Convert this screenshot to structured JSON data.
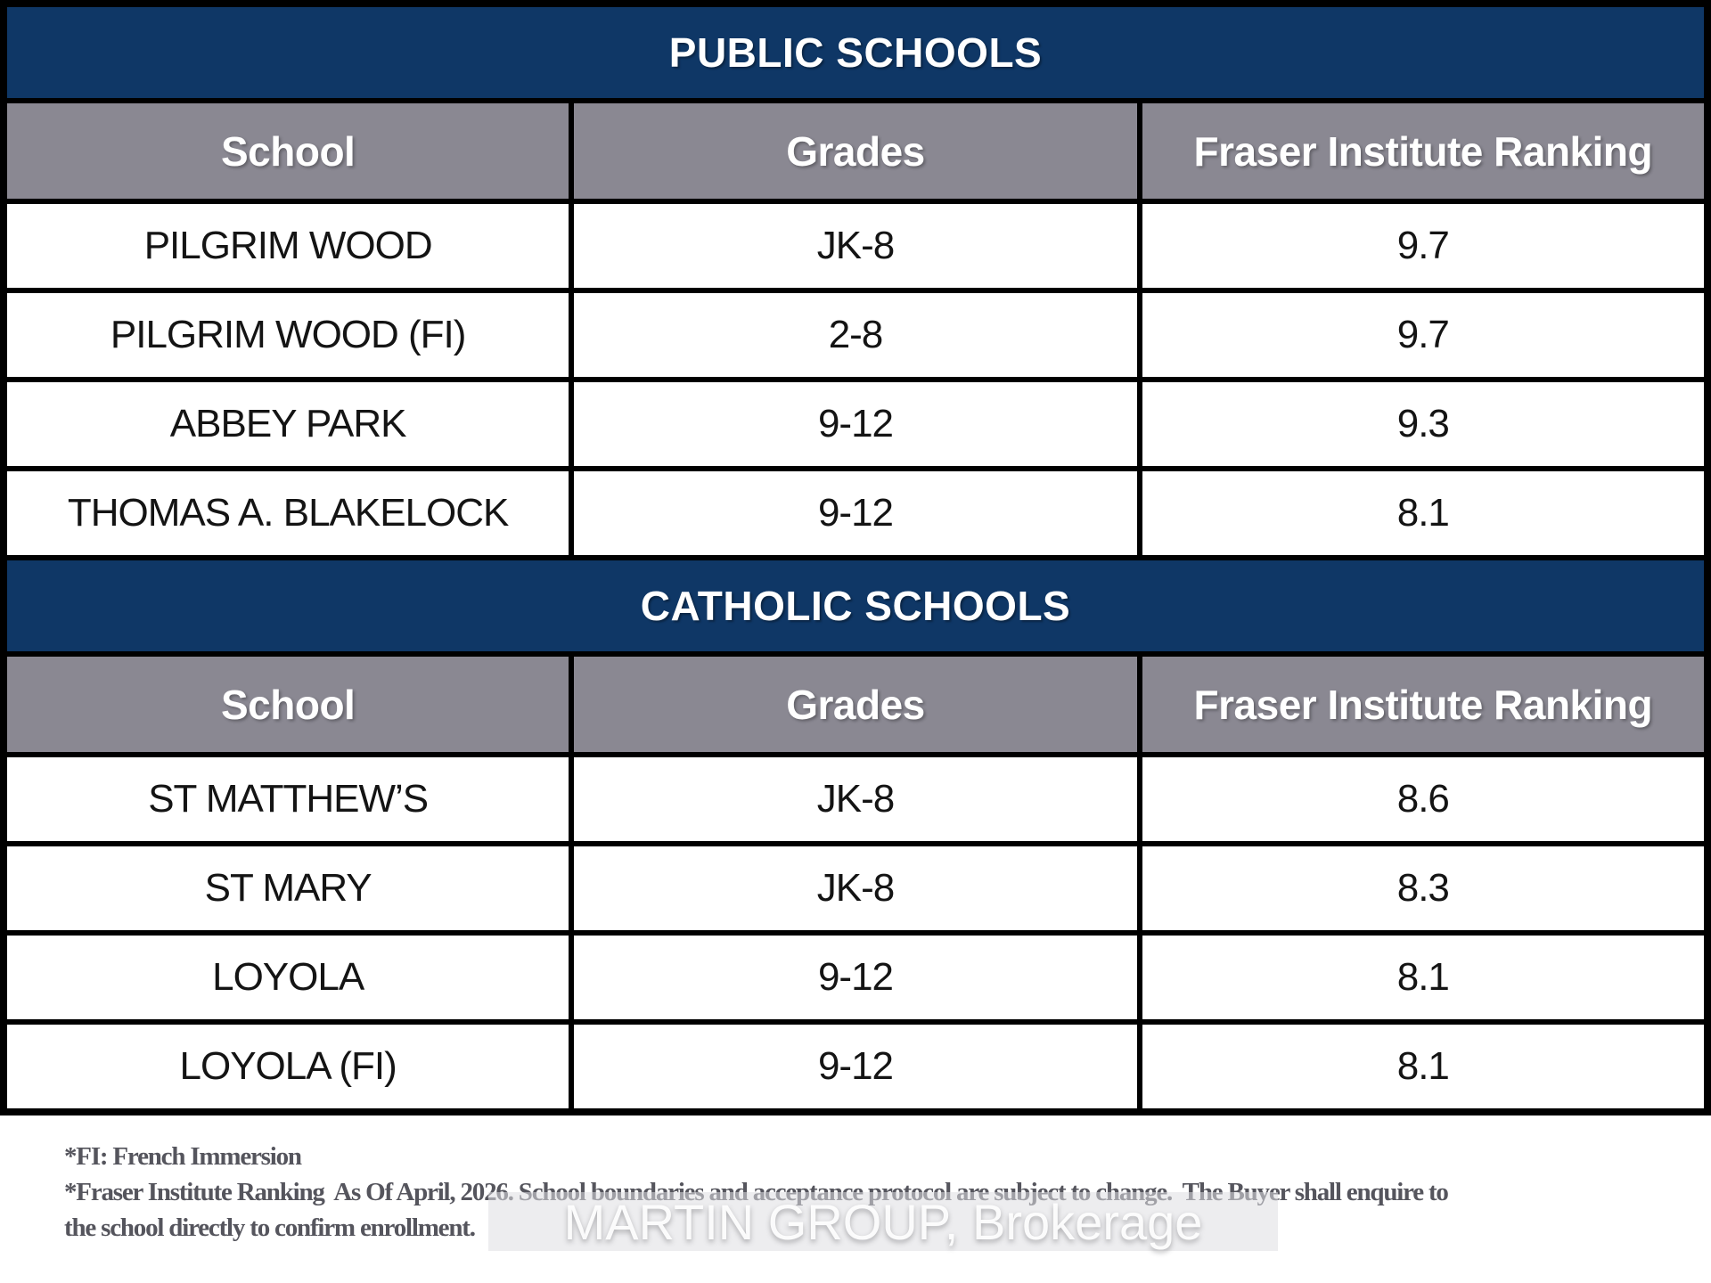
{
  "colors": {
    "navy": "#0f3766",
    "gray": "#8a8892",
    "border": "#000000",
    "cell_text": "#141414",
    "header_text": "#ffffff",
    "footnote": "#55555d",
    "watermark_text": "#ffffff"
  },
  "tables": [
    {
      "section_title": "PUBLIC SCHOOLS",
      "columns": [
        "School",
        "Grades",
        "Fraser Institute Ranking"
      ],
      "rows": [
        {
          "school": "PILGRIM WOOD",
          "grades": "JK-8",
          "ranking": "9.7"
        },
        {
          "school": "PILGRIM WOOD (FI)",
          "grades": "2-8",
          "ranking": "9.7"
        },
        {
          "school": "ABBEY PARK",
          "grades": "9-12",
          "ranking": "9.3"
        },
        {
          "school": "THOMAS A. BLAKELOCK",
          "grades": "9-12",
          "ranking": "8.1"
        }
      ]
    },
    {
      "section_title": "CATHOLIC SCHOOLS",
      "columns": [
        "School",
        "Grades",
        "Fraser Institute Ranking"
      ],
      "rows": [
        {
          "school": "ST MATTHEW’S",
          "grades": "JK-8",
          "ranking": "8.6"
        },
        {
          "school": "ST MARY",
          "grades": "JK-8",
          "ranking": "8.3"
        },
        {
          "school": "LOYOLA",
          "grades": "9-12",
          "ranking": "8.1"
        },
        {
          "school": "LOYOLA (FI)",
          "grades": "9-12",
          "ranking": "8.1"
        }
      ]
    }
  ],
  "footnotes": {
    "line1": "*FI: French Immersion",
    "line2": "*Fraser Institute Ranking  As Of April, 2026. School boundaries and acceptance protocol are subject to change.  The Buyer shall enquire to",
    "line3": "the school directly to confirm enrollment."
  },
  "watermark": {
    "text": "MARTIN GROUP, Brokerage"
  }
}
